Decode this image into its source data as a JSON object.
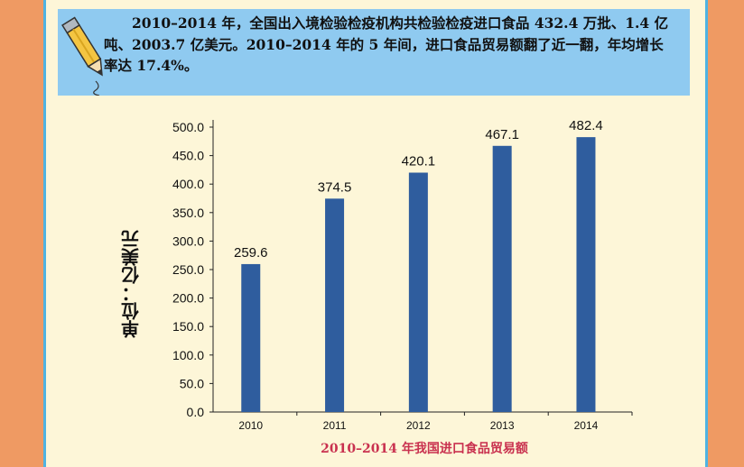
{
  "note": {
    "text": "2010–2014 年，全国出入境检验检疫机构共检验检疫进口食品 432.4 万批、1.4 亿吨、2003.7 亿美元。2010–2014 年的 5 年间，进口食品贸易额翻了近一翻，年均增长率达 17.4%。",
    "icon": "pencil-icon"
  },
  "chart_data": {
    "type": "bar",
    "categories": [
      "2010",
      "2011",
      "2012",
      "2013",
      "2014"
    ],
    "values": [
      259.6,
      374.5,
      420.1,
      467.1,
      482.4
    ],
    "value_labels": [
      "259.6",
      "374.5",
      "420.1",
      "467.1",
      "482.4"
    ],
    "yticks": [
      "0.0",
      "50.0",
      "100.0",
      "150.0",
      "200.0",
      "250.0",
      "300.0",
      "350.0",
      "400.0",
      "450.0",
      "500.0"
    ],
    "ylim": [
      0,
      500
    ],
    "ylabel": "单位：亿美元",
    "xlabel": "2010–2014 年我国进口食品贸易额",
    "grid": false,
    "bar_color": "#2f5d9e"
  }
}
